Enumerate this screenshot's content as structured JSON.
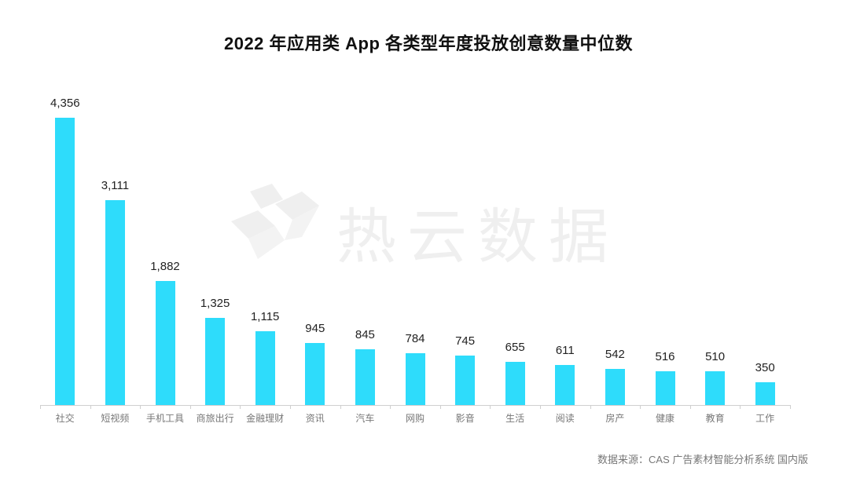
{
  "title": "2022 年应用类 App 各类型年度投放创意数量中位数",
  "watermark": {
    "icon": "rewo-logo-icon",
    "text": "热云数据"
  },
  "source": "数据来源：CAS 广告素材智能分析系统 国内版",
  "colors": {
    "bar": "#2edcfb",
    "axis": "#cfcfcf",
    "title": "#111111",
    "label": "#777777"
  },
  "chart_data": {
    "type": "bar",
    "title": "2022 年应用类 App 各类型年度投放创意数量中位数",
    "xlabel": "",
    "ylabel": "",
    "categories": [
      "社交",
      "短视频",
      "手机工具",
      "商旅出行",
      "金融理财",
      "资讯",
      "汽车",
      "网购",
      "影音",
      "生活",
      "阅读",
      "房产",
      "健康",
      "教育",
      "工作"
    ],
    "values": [
      4356,
      3111,
      1882,
      1325,
      1115,
      945,
      845,
      784,
      745,
      655,
      611,
      542,
      516,
      510,
      350
    ],
    "value_labels": [
      "4,356",
      "3,111",
      "1,882",
      "1,325",
      "1,115",
      "945",
      "845",
      "784",
      "745",
      "655",
      "611",
      "542",
      "516",
      "510",
      "350"
    ],
    "ylim": [
      0,
      4356
    ],
    "grid": false,
    "legend": null,
    "annotations": [
      "数据来源：CAS 广告素材智能分析系统 国内版"
    ]
  }
}
